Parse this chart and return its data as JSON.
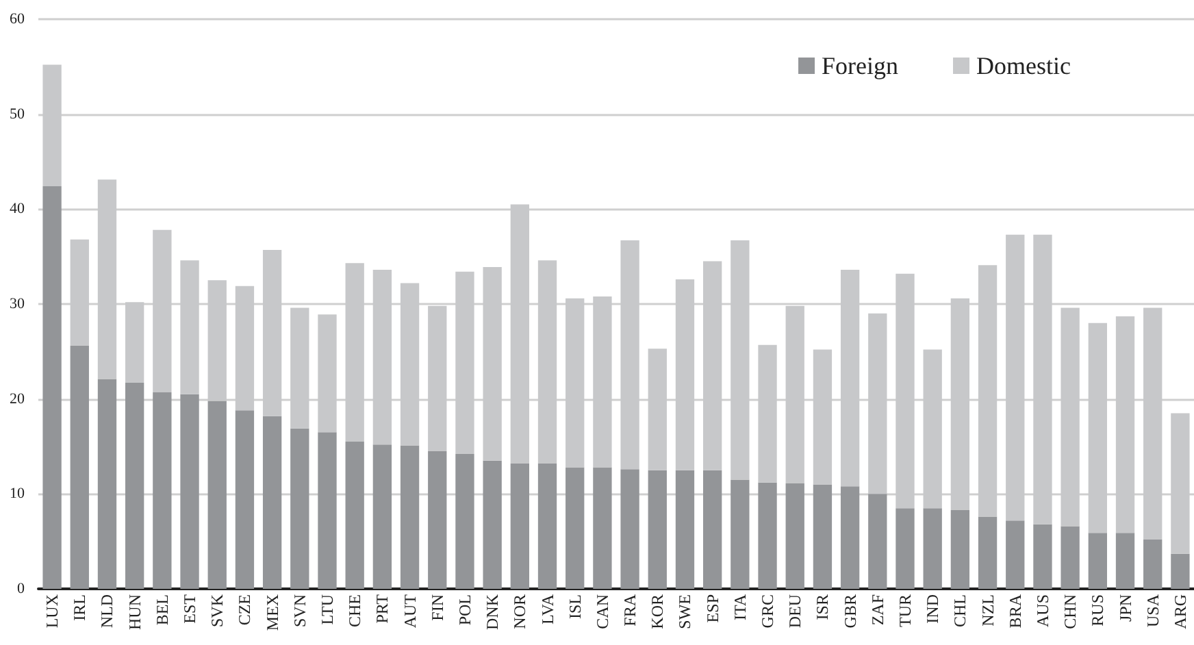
{
  "chart_data": {
    "type": "bar",
    "stacked": true,
    "categories": [
      "LUX",
      "IRL",
      "NLD",
      "HUN",
      "BEL",
      "EST",
      "SVK",
      "CZE",
      "MEX",
      "SVN",
      "LTU",
      "CHE",
      "PRT",
      "AUT",
      "FIN",
      "POL",
      "DNK",
      "NOR",
      "LVA",
      "ISL",
      "CAN",
      "FRA",
      "KOR",
      "SWE",
      "ESP",
      "ITA",
      "GRC",
      "DEU",
      "ISR",
      "GBR",
      "ZAF",
      "TUR",
      "IND",
      "CHL",
      "NZL",
      "BRA",
      "AUS",
      "CHN",
      "RUS",
      "JPN",
      "USA",
      "ARG"
    ],
    "series": [
      {
        "name": "Foreign",
        "color": "#939598",
        "values": [
          42.4,
          25.6,
          22.1,
          21.7,
          20.7,
          20.5,
          19.8,
          18.8,
          18.2,
          16.9,
          16.5,
          15.5,
          15.2,
          15.1,
          14.5,
          14.2,
          13.5,
          13.2,
          13.2,
          12.8,
          12.8,
          12.6,
          12.5,
          12.5,
          12.5,
          11.5,
          11.2,
          11.1,
          11.0,
          10.8,
          10.0,
          8.5,
          8.5,
          8.3,
          7.6,
          7.2,
          6.8,
          6.6,
          5.9,
          5.9,
          5.2,
          3.7
        ]
      },
      {
        "name": "Domestic",
        "color": "#c7c8ca",
        "values": [
          12.8,
          11.2,
          21.0,
          8.5,
          17.1,
          14.1,
          12.7,
          13.1,
          17.5,
          12.7,
          12.4,
          18.8,
          18.4,
          17.1,
          15.3,
          19.2,
          20.4,
          27.3,
          21.4,
          17.8,
          18.0,
          24.1,
          12.8,
          20.1,
          22.0,
          25.2,
          14.5,
          18.7,
          14.2,
          22.8,
          19.0,
          24.7,
          16.7,
          22.3,
          26.5,
          30.1,
          30.5,
          23.0,
          22.1,
          22.8,
          24.4,
          14.8
        ]
      }
    ],
    "ylim": [
      0,
      60
    ],
    "yticks": [
      0,
      10,
      20,
      30,
      40,
      50,
      60
    ],
    "grid": "y",
    "legend": "top right"
  }
}
